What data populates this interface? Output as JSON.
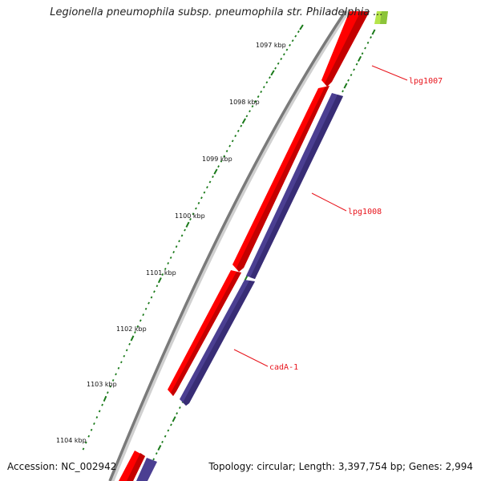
{
  "title": "Legionella pneumophila subsp. pneumophila str. Philadelphia ...",
  "footer": {
    "accession": "Accession: NC_002942",
    "topology": "Topology: circular; Length: 3,397,754 bp; Genes: 2,994"
  },
  "ruler": {
    "ticks": [
      "1097 kbp",
      "1098 kbp",
      "1099 kbp",
      "1100 kbp",
      "1101 kbp",
      "1102 kbp",
      "1103 kbp",
      "1104 kbp"
    ]
  },
  "genes": [
    {
      "label": "lpg1007",
      "strand": "+",
      "track": "outer",
      "color": "#ff0000"
    },
    {
      "label": "lpg1008",
      "strand": "+",
      "track": "outer",
      "color": "#ff0000"
    },
    {
      "label": "cadA-1",
      "strand": "+",
      "track": "outer",
      "color": "#ff0000"
    }
  ],
  "colors": {
    "backbone": "#7a7a7a",
    "gene_forward": "#ff0000",
    "gene_track2": "#4b3f92",
    "tick_marks": "#1a7a1a",
    "gene_label": "#e8141c",
    "top_gene_green": "#9acd32"
  }
}
